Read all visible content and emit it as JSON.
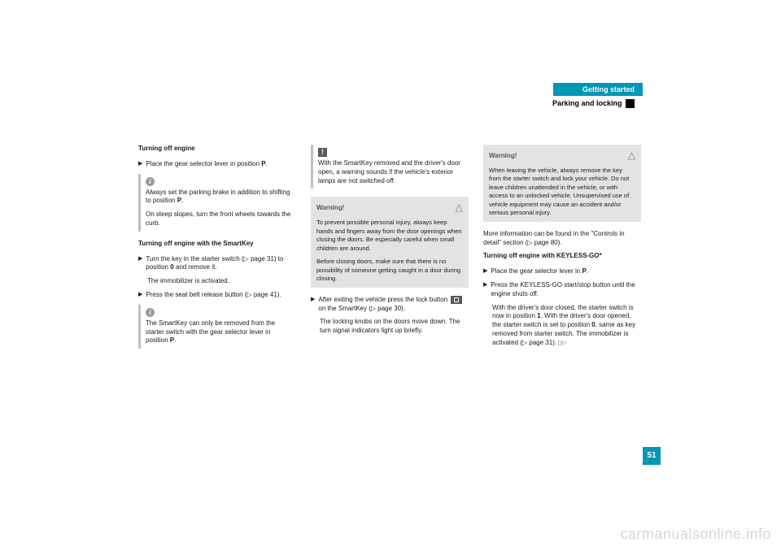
{
  "header": {
    "chapter": "Getting started",
    "section": "Parking and locking"
  },
  "col1": {
    "h1": "Turning off engine",
    "b1": "Place the gear selector lever in position ",
    "b1b": "P",
    "b1c": ".",
    "info1a": "Always set the parking brake in addition to shifting to position ",
    "info1b": "P",
    "info1c": ".",
    "info1d": "On steep slopes, turn the front wheels towards the curb.",
    "h2": "Turning off engine with the SmartKey",
    "b2a": "Turn the key in the starter switch (",
    "b2b": "page 31) to position ",
    "b2c": "0",
    "b2d": " and remove it.",
    "b2e": "The immobilizer is activated.",
    "b3a": "Press the seat belt release button (",
    "b3b": "page 41).",
    "info2": "The SmartKey can only be removed from the starter switch with the gear selector lever in position ",
    "info2b": "P",
    "info2c": "."
  },
  "col2": {
    "excl1": "With the SmartKey removed and the driver's door open, a warning sounds if the vehicle's exterior lamps are not switched off.",
    "warn_title": "Warning!",
    "warn1a": "To prevent possible personal injury, always keep hands and fingers away from the door openings when closing the doors. Be especially careful when small children are around.",
    "warn1b": "Before closing doors, make sure that there is no possibility of someone getting caught in a door during closing.",
    "b1a": "After exiting the vehicle press the lock button ",
    "b1b": " on the SmartKey (",
    "b1c": "page 30).",
    "b1d": "The locking knobs on the doors move down. The turn signal indicators light up briefly."
  },
  "col3": {
    "warn_title": "Warning!",
    "warn1": "When leaving the vehicle, always remove the key from the starter switch and lock your vehicle. Do not leave children unattended in the vehicle, or with access to an unlocked vehicle. Unsupervised use of vehicle equipment may cause an accident and/or serious personal injury.",
    "p1a": "More information can be found in the \"Controls in detail\" section (",
    "p1b": "page 80).",
    "h1": "Turning off engine with KEYLESS-GO*",
    "b1a": "Place the gear selector lever in ",
    "b1b": "P",
    "b1c": ".",
    "b2": "Press the KEYLESS-GO start/stop button until the engine shuts off.",
    "b2b_a": "With the driver's door closed, the starter switch is now in position ",
    "b2b_b": "1",
    "b2b_c": ". With the driver's door opened, the starter switch is set to position ",
    "b2b_d": "0",
    "b2b_e": ", same as key removed from starter switch. The immobilizer is activated (",
    "b2b_f": "page 31)."
  },
  "pageNumber": "51",
  "watermark": "carmanualsonline.info",
  "colors": {
    "accent": "#0096b4",
    "warning_bg": "#e3e3e3",
    "info_bar": "#c0c0c0",
    "watermark": "#d6d6d6"
  }
}
